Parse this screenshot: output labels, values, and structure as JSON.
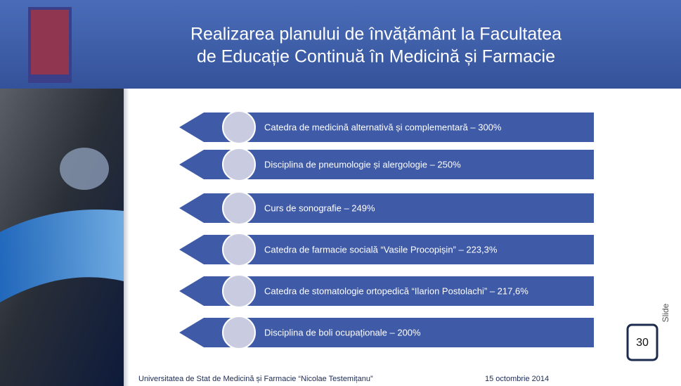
{
  "header": {
    "title_lines": [
      "Realizarea planului de învățământ la Facultatea",
      "de Educație Continuă în Medicină și Farmacie"
    ]
  },
  "items": [
    "Catedra de medicină alternativă și complementară – 300%",
    "Disciplina de pneumologie și alergologie – 250%",
    "Curs de sonografie – 249%",
    "Catedra de farmacie socială “Vasile Procopișin” – 223,3%",
    "Catedra de stomatologie ortopedică “Ilarion Postolachi” – 217,6%",
    "Disciplina de boli ocupaționale – 200%"
  ],
  "footer": {
    "university": "Universitatea de Stat de Medicină și Farmacie “Nicolae Testemițanu”",
    "date": "15 octombrie 2014"
  },
  "slide": {
    "label": "Slide",
    "number": "30"
  }
}
